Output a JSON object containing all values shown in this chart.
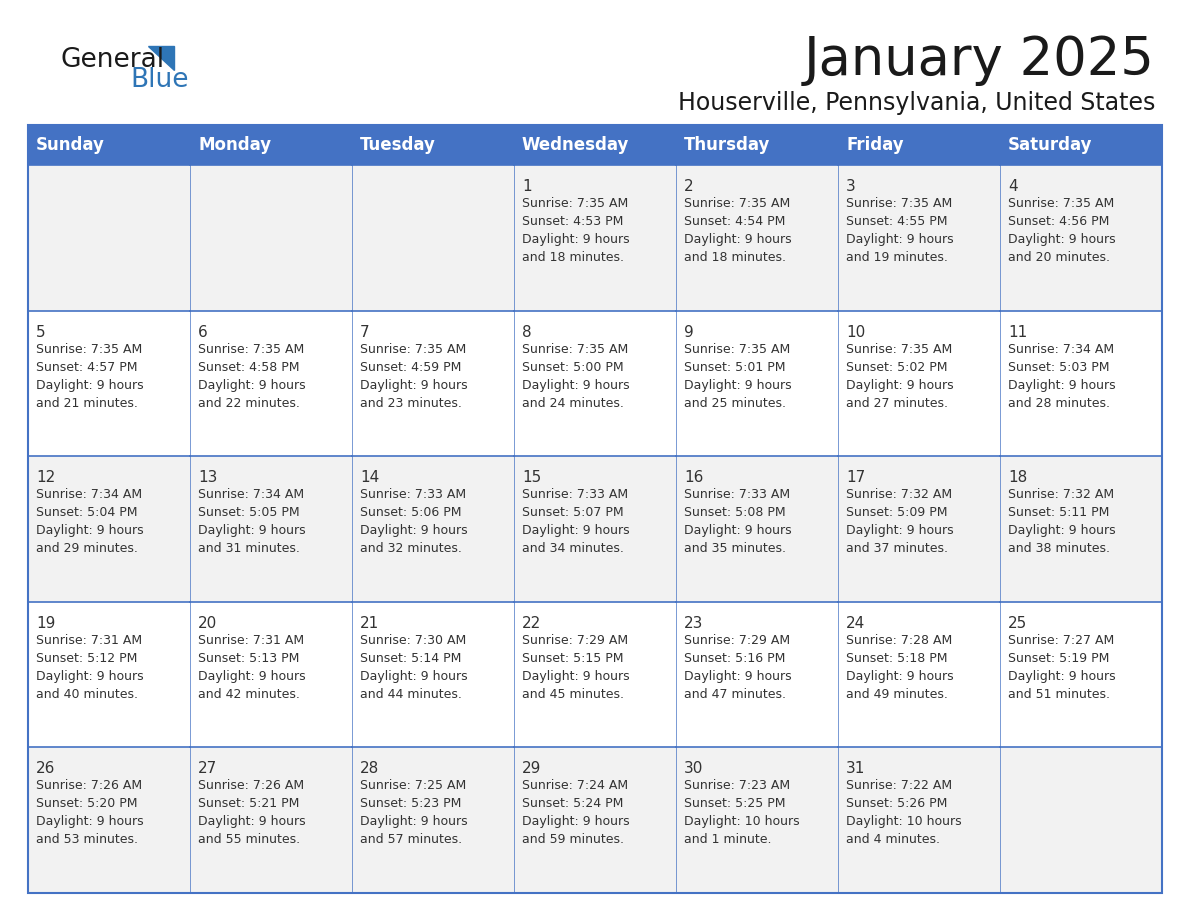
{
  "title": "January 2025",
  "subtitle": "Houserville, Pennsylvania, United States",
  "days_of_week": [
    "Sunday",
    "Monday",
    "Tuesday",
    "Wednesday",
    "Thursday",
    "Friday",
    "Saturday"
  ],
  "header_bg": "#4472C4",
  "header_text": "#FFFFFF",
  "cell_bg_light": "#F2F2F2",
  "cell_bg_white": "#FFFFFF",
  "cell_text": "#333333",
  "grid_color": "#4472C4",
  "title_color": "#1a1a1a",
  "subtitle_color": "#1a1a1a",
  "logo_general_color": "#1a1a1a",
  "logo_blue_color": "#2E75B6",
  "calendar_data": [
    [
      {
        "day": null,
        "sunrise": null,
        "sunset": null,
        "daylight": null
      },
      {
        "day": null,
        "sunrise": null,
        "sunset": null,
        "daylight": null
      },
      {
        "day": null,
        "sunrise": null,
        "sunset": null,
        "daylight": null
      },
      {
        "day": 1,
        "sunrise": "7:35 AM",
        "sunset": "4:53 PM",
        "daylight": "9 hours and 18 minutes."
      },
      {
        "day": 2,
        "sunrise": "7:35 AM",
        "sunset": "4:54 PM",
        "daylight": "9 hours and 18 minutes."
      },
      {
        "day": 3,
        "sunrise": "7:35 AM",
        "sunset": "4:55 PM",
        "daylight": "9 hours and 19 minutes."
      },
      {
        "day": 4,
        "sunrise": "7:35 AM",
        "sunset": "4:56 PM",
        "daylight": "9 hours and 20 minutes."
      }
    ],
    [
      {
        "day": 5,
        "sunrise": "7:35 AM",
        "sunset": "4:57 PM",
        "daylight": "9 hours and 21 minutes."
      },
      {
        "day": 6,
        "sunrise": "7:35 AM",
        "sunset": "4:58 PM",
        "daylight": "9 hours and 22 minutes."
      },
      {
        "day": 7,
        "sunrise": "7:35 AM",
        "sunset": "4:59 PM",
        "daylight": "9 hours and 23 minutes."
      },
      {
        "day": 8,
        "sunrise": "7:35 AM",
        "sunset": "5:00 PM",
        "daylight": "9 hours and 24 minutes."
      },
      {
        "day": 9,
        "sunrise": "7:35 AM",
        "sunset": "5:01 PM",
        "daylight": "9 hours and 25 minutes."
      },
      {
        "day": 10,
        "sunrise": "7:35 AM",
        "sunset": "5:02 PM",
        "daylight": "9 hours and 27 minutes."
      },
      {
        "day": 11,
        "sunrise": "7:34 AM",
        "sunset": "5:03 PM",
        "daylight": "9 hours and 28 minutes."
      }
    ],
    [
      {
        "day": 12,
        "sunrise": "7:34 AM",
        "sunset": "5:04 PM",
        "daylight": "9 hours and 29 minutes."
      },
      {
        "day": 13,
        "sunrise": "7:34 AM",
        "sunset": "5:05 PM",
        "daylight": "9 hours and 31 minutes."
      },
      {
        "day": 14,
        "sunrise": "7:33 AM",
        "sunset": "5:06 PM",
        "daylight": "9 hours and 32 minutes."
      },
      {
        "day": 15,
        "sunrise": "7:33 AM",
        "sunset": "5:07 PM",
        "daylight": "9 hours and 34 minutes."
      },
      {
        "day": 16,
        "sunrise": "7:33 AM",
        "sunset": "5:08 PM",
        "daylight": "9 hours and 35 minutes."
      },
      {
        "day": 17,
        "sunrise": "7:32 AM",
        "sunset": "5:09 PM",
        "daylight": "9 hours and 37 minutes."
      },
      {
        "day": 18,
        "sunrise": "7:32 AM",
        "sunset": "5:11 PM",
        "daylight": "9 hours and 38 minutes."
      }
    ],
    [
      {
        "day": 19,
        "sunrise": "7:31 AM",
        "sunset": "5:12 PM",
        "daylight": "9 hours and 40 minutes."
      },
      {
        "day": 20,
        "sunrise": "7:31 AM",
        "sunset": "5:13 PM",
        "daylight": "9 hours and 42 minutes."
      },
      {
        "day": 21,
        "sunrise": "7:30 AM",
        "sunset": "5:14 PM",
        "daylight": "9 hours and 44 minutes."
      },
      {
        "day": 22,
        "sunrise": "7:29 AM",
        "sunset": "5:15 PM",
        "daylight": "9 hours and 45 minutes."
      },
      {
        "day": 23,
        "sunrise": "7:29 AM",
        "sunset": "5:16 PM",
        "daylight": "9 hours and 47 minutes."
      },
      {
        "day": 24,
        "sunrise": "7:28 AM",
        "sunset": "5:18 PM",
        "daylight": "9 hours and 49 minutes."
      },
      {
        "day": 25,
        "sunrise": "7:27 AM",
        "sunset": "5:19 PM",
        "daylight": "9 hours and 51 minutes."
      }
    ],
    [
      {
        "day": 26,
        "sunrise": "7:26 AM",
        "sunset": "5:20 PM",
        "daylight": "9 hours and 53 minutes."
      },
      {
        "day": 27,
        "sunrise": "7:26 AM",
        "sunset": "5:21 PM",
        "daylight": "9 hours and 55 minutes."
      },
      {
        "day": 28,
        "sunrise": "7:25 AM",
        "sunset": "5:23 PM",
        "daylight": "9 hours and 57 minutes."
      },
      {
        "day": 29,
        "sunrise": "7:24 AM",
        "sunset": "5:24 PM",
        "daylight": "9 hours and 59 minutes."
      },
      {
        "day": 30,
        "sunrise": "7:23 AM",
        "sunset": "5:25 PM",
        "daylight": "10 hours and 1 minute."
      },
      {
        "day": 31,
        "sunrise": "7:22 AM",
        "sunset": "5:26 PM",
        "daylight": "10 hours and 4 minutes."
      },
      {
        "day": null,
        "sunrise": null,
        "sunset": null,
        "daylight": null
      }
    ]
  ]
}
